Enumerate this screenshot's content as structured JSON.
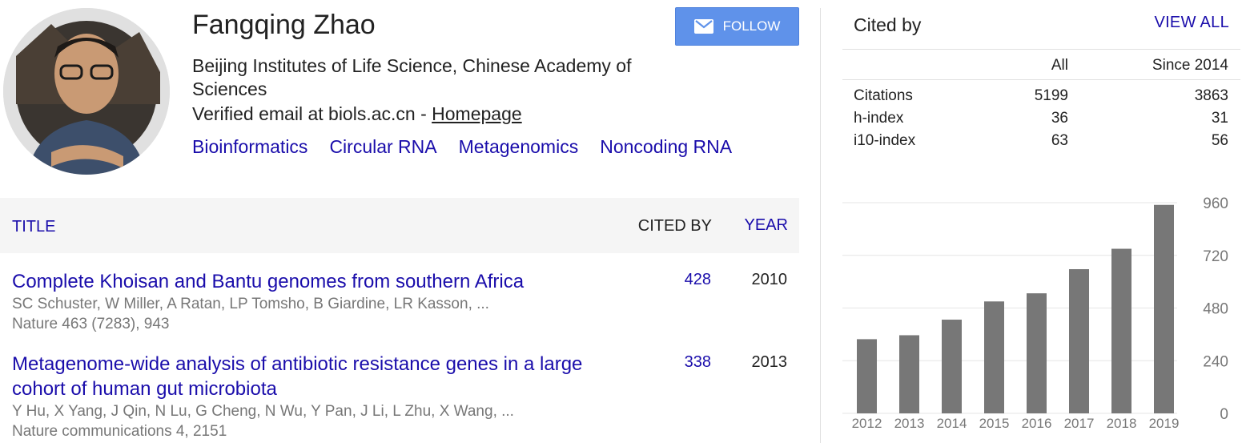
{
  "profile": {
    "name": "Fangqing Zhao",
    "affiliation": "Beijing Institutes of Life Science, Chinese Academy of Sciences",
    "email_text": "Verified email at biols.ac.cn - ",
    "homepage_label": "Homepage",
    "interests": [
      "Bioinformatics",
      "Circular RNA",
      "Metagenomics",
      "Noncoding RNA"
    ],
    "follow_label": "FOLLOW"
  },
  "table": {
    "headers": {
      "title": "TITLE",
      "cited_by": "CITED BY",
      "year": "YEAR"
    },
    "publications": [
      {
        "title": "Complete Khoisan and Bantu genomes from southern Africa",
        "authors": "SC Schuster, W Miller, A Ratan, LP Tomsho, B Giardine, LR Kasson, ...",
        "venue": "Nature 463 (7283), 943",
        "cited_by": "428",
        "year": "2010"
      },
      {
        "title": "Metagenome-wide analysis of antibiotic resistance genes in a large cohort of human gut microbiota",
        "authors": "Y Hu, X Yang, J Qin, N Lu, G Cheng, N Wu, Y Pan, J Li, L Zhu, X Wang, ...",
        "venue": "Nature communications 4, 2151",
        "cited_by": "338",
        "year": "2013"
      }
    ]
  },
  "cited_by": {
    "title": "Cited by",
    "view_all": "VIEW ALL",
    "columns": [
      "All",
      "Since 2014"
    ],
    "rows": [
      {
        "label": "Citations",
        "all": "5199",
        "since": "3863"
      },
      {
        "label": "h-index",
        "all": "36",
        "since": "31"
      },
      {
        "label": "i10-index",
        "all": "63",
        "since": "56"
      }
    ]
  },
  "colors": {
    "link": "#1a0dab",
    "button": "#5f92ea",
    "bar": "#777777"
  },
  "icons": {
    "follow": "envelope-icon"
  },
  "chart_data": {
    "type": "bar",
    "categories": [
      "2012",
      "2013",
      "2014",
      "2015",
      "2016",
      "2017",
      "2018",
      "2019"
    ],
    "values": [
      338,
      356,
      427,
      510,
      547,
      657,
      750,
      950
    ],
    "ylim": [
      0,
      960
    ],
    "yticks": [
      "0",
      "240",
      "480",
      "720",
      "960"
    ],
    "grid": true
  }
}
